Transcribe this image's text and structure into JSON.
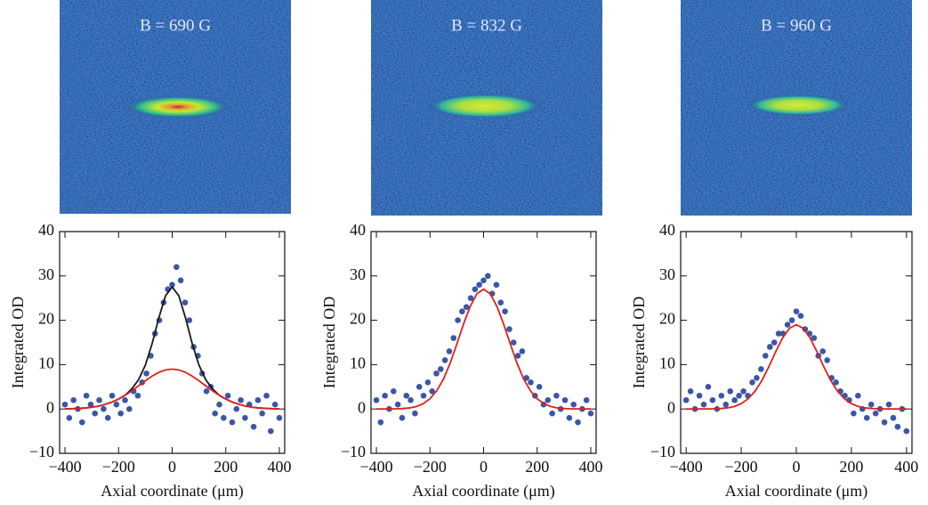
{
  "chart_data": [
    {
      "type": "scatter",
      "image_label": "B = 690 G",
      "xlabel": "Axial coordinate (μm)",
      "ylabel": "Integrated OD",
      "xlim": [
        -420,
        420
      ],
      "ylim": [
        -10,
        40
      ],
      "xticks": [
        {
          "value": -400,
          "label": "−400"
        },
        {
          "value": -200,
          "label": "−200"
        },
        0,
        200,
        400
      ],
      "yticks": [
        {
          "value": -10,
          "label": "−10"
        },
        0,
        10,
        20,
        30,
        40
      ],
      "series": [
        {
          "mode": "markers",
          "color": "#3a56a8",
          "x": [
            -400,
            -384,
            -368,
            -352,
            -336,
            -320,
            -304,
            -288,
            -272,
            -256,
            -240,
            -224,
            -208,
            -192,
            -176,
            -160,
            -144,
            -128,
            -112,
            -96,
            -80,
            -64,
            -48,
            -32,
            -16,
            0,
            16,
            32,
            48,
            64,
            80,
            96,
            112,
            128,
            144,
            160,
            176,
            192,
            208,
            224,
            240,
            256,
            272,
            288,
            304,
            320,
            336,
            352,
            368,
            384,
            400
          ],
          "values": [
            1,
            -2,
            2,
            0,
            -3,
            3,
            1,
            -1,
            2,
            0,
            -2,
            3,
            1,
            -1,
            2,
            0,
            4,
            3,
            6,
            8,
            12,
            17,
            20,
            24,
            27,
            28,
            32,
            29,
            24,
            20,
            14,
            12,
            8,
            4,
            5,
            -1,
            1,
            -2,
            3,
            -3,
            0,
            2,
            -2,
            1,
            -4,
            2,
            -1,
            3,
            -5,
            1,
            -2
          ]
        },
        {
          "mode": "line",
          "color": "#1a1a1a",
          "x": [
            -400,
            -375,
            -350,
            -325,
            -300,
            -275,
            -250,
            -225,
            -200,
            -175,
            -150,
            -125,
            -100,
            -75,
            -50,
            -25,
            0,
            25,
            50,
            75,
            100,
            125,
            150,
            175,
            200,
            225,
            250,
            275,
            300,
            325,
            350,
            375,
            400
          ],
          "values": [
            0.04,
            0.07,
            0.13,
            0.23,
            0.4,
            0.65,
            1.03,
            1.55,
            2.24,
            3.12,
            4.57,
            6.63,
            9.9,
            14.7,
            20.5,
            25.5,
            27.5,
            25.5,
            20.5,
            14.7,
            9.9,
            6.63,
            4.57,
            3.12,
            2.24,
            1.55,
            1.03,
            0.65,
            0.4,
            0.23,
            0.13,
            0.07,
            0.04
          ]
        },
        {
          "mode": "line",
          "color": "#e0201c",
          "x": [
            -400,
            -375,
            -350,
            -325,
            -300,
            -275,
            -250,
            -225,
            -200,
            -175,
            -150,
            -125,
            -100,
            -75,
            -50,
            -25,
            0,
            25,
            50,
            75,
            100,
            125,
            150,
            175,
            200,
            225,
            250,
            275,
            300,
            325,
            350,
            375,
            400
          ],
          "values": [
            0.04,
            0.07,
            0.13,
            0.23,
            0.4,
            0.65,
            1.03,
            1.55,
            2.24,
            3.11,
            4.12,
            5.23,
            6.36,
            7.4,
            8.25,
            8.81,
            9,
            8.81,
            8.25,
            7.4,
            6.36,
            5.23,
            4.12,
            3.11,
            2.24,
            1.55,
            1.03,
            0.65,
            0.4,
            0.23,
            0.13,
            0.07,
            0.04
          ]
        }
      ]
    },
    {
      "type": "scatter",
      "image_label": "B = 832 G",
      "xlabel": "Axial coordinate (μm)",
      "ylabel": "Integrated OD",
      "xlim": [
        -420,
        420
      ],
      "ylim": [
        -10,
        40
      ],
      "xticks": [
        {
          "value": -400,
          "label": "−400"
        },
        {
          "value": -200,
          "label": "−200"
        },
        0,
        200,
        400
      ],
      "yticks": [
        {
          "value": -10,
          "label": "−10"
        },
        0,
        10,
        20,
        30,
        40
      ],
      "series": [
        {
          "mode": "markers",
          "color": "#3a56a8",
          "x": [
            -400,
            -384,
            -368,
            -352,
            -336,
            -320,
            -304,
            -288,
            -272,
            -256,
            -240,
            -224,
            -208,
            -192,
            -176,
            -160,
            -144,
            -128,
            -112,
            -96,
            -80,
            -64,
            -48,
            -32,
            -16,
            0,
            16,
            32,
            48,
            64,
            80,
            96,
            112,
            128,
            144,
            160,
            176,
            192,
            208,
            224,
            240,
            256,
            272,
            288,
            304,
            320,
            336,
            352,
            368,
            384,
            400
          ],
          "values": [
            2,
            -3,
            3,
            0,
            4,
            1,
            -2,
            3,
            2,
            -1,
            5,
            3,
            6,
            4,
            8,
            9,
            11,
            13,
            16,
            20,
            22,
            23,
            25,
            27,
            28,
            29,
            30,
            26,
            28,
            24,
            22,
            18,
            15,
            12,
            13,
            7,
            6,
            3,
            5,
            1,
            2,
            -1,
            3,
            0,
            2,
            -2,
            1,
            -3,
            0,
            2,
            -1
          ]
        },
        {
          "mode": "line",
          "color": "#e0201c",
          "x": [
            -400,
            -375,
            -350,
            -325,
            -300,
            -275,
            -250,
            -225,
            -200,
            -175,
            -150,
            -125,
            -100,
            -75,
            -50,
            -25,
            0,
            25,
            50,
            75,
            100,
            125,
            150,
            175,
            200,
            225,
            250,
            275,
            300,
            325,
            350,
            375,
            400
          ],
          "values": [
            0,
            0,
            0.01,
            0.04,
            0.1,
            0.25,
            0.57,
            1.19,
            2.3,
            4.1,
            6.7,
            10.3,
            14.6,
            19.1,
            23.1,
            25.98,
            27,
            25.98,
            23.1,
            19.1,
            14.6,
            10.3,
            6.7,
            4.1,
            2.3,
            1.19,
            0.57,
            0.25,
            0.1,
            0.04,
            0.01,
            0,
            0
          ]
        }
      ]
    },
    {
      "type": "scatter",
      "image_label": "B = 960 G",
      "xlabel": "Axial coordinate (μm)",
      "ylabel": "Integrated OD",
      "xlim": [
        -420,
        420
      ],
      "ylim": [
        -10,
        40
      ],
      "xticks": [
        {
          "value": -400,
          "label": "−400"
        },
        {
          "value": -200,
          "label": "−200"
        },
        0,
        200,
        400
      ],
      "yticks": [
        {
          "value": -10,
          "label": "−10"
        },
        0,
        10,
        20,
        30,
        40
      ],
      "series": [
        {
          "mode": "markers",
          "color": "#3a56a8",
          "x": [
            -400,
            -384,
            -368,
            -352,
            -336,
            -320,
            -304,
            -288,
            -272,
            -256,
            -240,
            -224,
            -208,
            -192,
            -176,
            -160,
            -144,
            -128,
            -112,
            -96,
            -80,
            -64,
            -48,
            -32,
            -16,
            0,
            16,
            32,
            48,
            64,
            80,
            96,
            112,
            128,
            144,
            160,
            176,
            192,
            208,
            224,
            240,
            256,
            272,
            288,
            304,
            320,
            336,
            352,
            368,
            384,
            400
          ],
          "values": [
            2,
            4,
            0,
            3,
            1,
            5,
            2,
            0,
            3,
            1,
            4,
            2,
            3,
            4,
            3,
            6,
            7,
            9,
            12,
            14,
            15,
            17,
            17,
            19,
            20,
            22,
            21,
            18,
            17,
            16,
            12,
            13,
            11,
            7,
            6,
            4,
            3,
            2,
            -1,
            3,
            0,
            -2,
            1,
            -1,
            0,
            -3,
            1,
            -2,
            -4,
            0,
            -5
          ]
        },
        {
          "mode": "line",
          "color": "#e0201c",
          "x": [
            -400,
            -375,
            -350,
            -325,
            -300,
            -275,
            -250,
            -225,
            -200,
            -175,
            -150,
            -125,
            -100,
            -75,
            -50,
            -25,
            0,
            25,
            50,
            75,
            100,
            125,
            150,
            175,
            200,
            225,
            250,
            275,
            300,
            325,
            350,
            375,
            400
          ],
          "values": [
            0,
            0,
            0,
            0.01,
            0.04,
            0.1,
            0.25,
            0.57,
            1.2,
            2.3,
            4,
            6.4,
            9.5,
            12.9,
            16,
            18.2,
            19,
            18.2,
            16,
            12.9,
            9.5,
            6.4,
            4,
            2.3,
            1.2,
            0.57,
            0.25,
            0.1,
            0.04,
            0.01,
            0,
            0,
            0
          ]
        }
      ]
    }
  ]
}
